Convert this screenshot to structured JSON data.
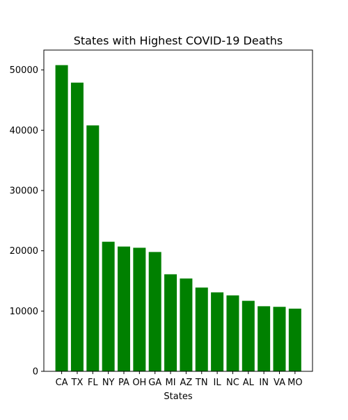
{
  "chart_data": {
    "type": "bar",
    "title": "States with Highest COVID-19 Deaths",
    "xlabel": "States",
    "ylabel": "",
    "categories": [
      "CA",
      "TX",
      "FL",
      "NY",
      "PA",
      "OH",
      "GA",
      "MI",
      "AZ",
      "TN",
      "IL",
      "NC",
      "AL",
      "IN",
      "VA",
      "MO"
    ],
    "values": [
      50800,
      47900,
      40800,
      21500,
      20700,
      20500,
      19800,
      16100,
      15400,
      13900,
      13100,
      12600,
      11700,
      10800,
      10700,
      10400
    ],
    "ylim": [
      0,
      53300
    ],
    "yticks": [
      0,
      10000,
      20000,
      30000,
      40000,
      50000
    ],
    "grid": false,
    "colors": {
      "bar": "#008000",
      "axis": "#000000",
      "background": "#ffffff"
    }
  }
}
